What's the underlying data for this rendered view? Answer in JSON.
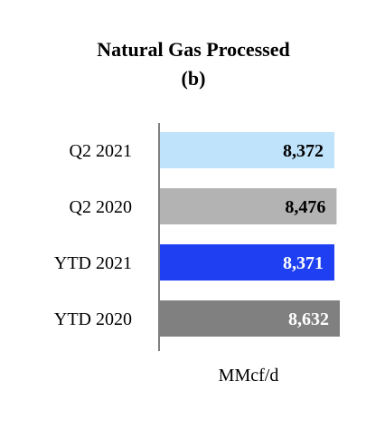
{
  "chart_data": {
    "type": "bar",
    "orientation": "horizontal",
    "title": "Natural Gas Processed",
    "subtitle": "(b)",
    "xlabel": "MMcf/d",
    "ylabel": "",
    "categories": [
      "Q2 2021",
      "Q2 2020",
      "YTD 2021",
      "YTD 2020"
    ],
    "values": [
      8372,
      8476,
      8371,
      8632
    ],
    "value_labels": [
      "8,372",
      "8,476",
      "8,371",
      "8,632"
    ],
    "bar_colors": [
      "#bfe3fb",
      "#b3b3b3",
      "#1f3ff2",
      "#808080"
    ],
    "label_colors": [
      "#000000",
      "#000000",
      "#ffffff",
      "#ffffff"
    ],
    "xlim": [
      0,
      8632
    ],
    "grid": false,
    "legend": "none"
  }
}
